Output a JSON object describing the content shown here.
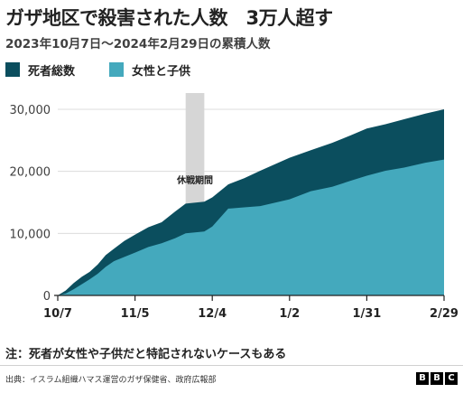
{
  "header": {
    "title": "ガザ地区で殺害された人数　3万人超す",
    "subtitle": "2023年10月7日～2024年2月29日の累積人数"
  },
  "legend": [
    {
      "label": "死者総数",
      "color": "#0b4e5e"
    },
    {
      "label": "女性と子供",
      "color": "#44a9bd"
    }
  ],
  "footer": {
    "note": "注：死者が女性や子供だと特記されないケースもある",
    "source": "出典：イスラム組織ハマス運営のガザ保健省、政府広報部",
    "brand": [
      "B",
      "B",
      "C"
    ]
  },
  "chart_data": {
    "type": "area",
    "title": "ガザ地区で殺害された人数　3万人超す",
    "subtitle": "2023年10月7日～2024年2月29日の累積人数",
    "xlabel": "",
    "ylabel": "",
    "x_ticks": [
      "10/7",
      "11/5",
      "12/4",
      "1/2",
      "1/31",
      "2/29"
    ],
    "y_ticks": [
      "0",
      "10,000",
      "20,000",
      "30,000"
    ],
    "ylim": [
      0,
      30000
    ],
    "grid": true,
    "legend_position": "top-left",
    "annotation": {
      "label": "休戦期間",
      "start": "2023-11-24",
      "end": "2023-12-01"
    },
    "series": [
      {
        "name": "死者総数",
        "color": "#0b4e5e",
        "points": [
          [
            "2023-10-07",
            0
          ],
          [
            "2023-10-10",
            800
          ],
          [
            "2023-10-13",
            2000
          ],
          [
            "2023-10-16",
            3000
          ],
          [
            "2023-10-19",
            3800
          ],
          [
            "2023-10-22",
            5000
          ],
          [
            "2023-10-25",
            6500
          ],
          [
            "2023-10-28",
            7500
          ],
          [
            "2023-11-01",
            8800
          ],
          [
            "2023-11-05",
            9800
          ],
          [
            "2023-11-10",
            11000
          ],
          [
            "2023-11-15",
            11800
          ],
          [
            "2023-11-20",
            13500
          ],
          [
            "2023-11-24",
            14800
          ],
          [
            "2023-12-01",
            15100
          ],
          [
            "2023-12-04",
            15800
          ],
          [
            "2023-12-10",
            17900
          ],
          [
            "2023-12-16",
            18900
          ],
          [
            "2023-12-22",
            20100
          ],
          [
            "2024-01-02",
            22200
          ],
          [
            "2024-01-10",
            23400
          ],
          [
            "2024-01-18",
            24600
          ],
          [
            "2024-01-25",
            25800
          ],
          [
            "2024-01-31",
            26900
          ],
          [
            "2024-02-07",
            27600
          ],
          [
            "2024-02-14",
            28400
          ],
          [
            "2024-02-22",
            29300
          ],
          [
            "2024-02-29",
            30000
          ]
        ]
      },
      {
        "name": "女性と子供",
        "color": "#44a9bd",
        "points": [
          [
            "2023-10-07",
            0
          ],
          [
            "2023-10-10",
            300
          ],
          [
            "2023-10-13",
            1000
          ],
          [
            "2023-10-16",
            1800
          ],
          [
            "2023-10-19",
            2600
          ],
          [
            "2023-10-22",
            3500
          ],
          [
            "2023-10-25",
            4600
          ],
          [
            "2023-10-28",
            5500
          ],
          [
            "2023-11-01",
            6200
          ],
          [
            "2023-11-05",
            6900
          ],
          [
            "2023-11-10",
            7800
          ],
          [
            "2023-11-15",
            8400
          ],
          [
            "2023-11-20",
            9200
          ],
          [
            "2023-11-24",
            10000
          ],
          [
            "2023-12-01",
            10300
          ],
          [
            "2023-12-04",
            11100
          ],
          [
            "2023-12-10",
            14000
          ],
          [
            "2023-12-16",
            14200
          ],
          [
            "2023-12-22",
            14400
          ],
          [
            "2024-01-02",
            15500
          ],
          [
            "2024-01-10",
            16800
          ],
          [
            "2024-01-18",
            17500
          ],
          [
            "2024-01-25",
            18500
          ],
          [
            "2024-01-31",
            19300
          ],
          [
            "2024-02-07",
            20100
          ],
          [
            "2024-02-14",
            20600
          ],
          [
            "2024-02-22",
            21400
          ],
          [
            "2024-02-29",
            21900
          ]
        ]
      }
    ]
  }
}
